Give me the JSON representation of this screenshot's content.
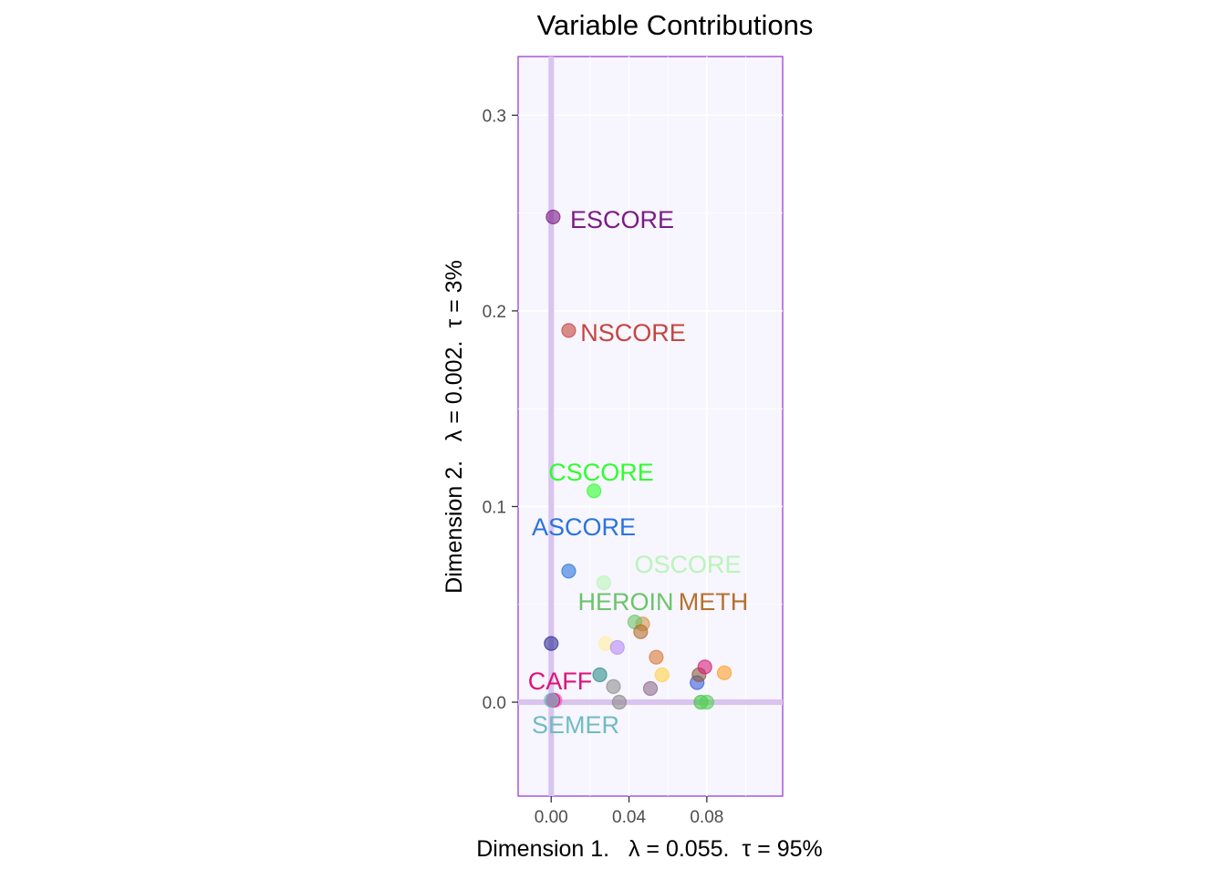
{
  "chart_data": {
    "type": "scatter",
    "title": "Variable Contributions",
    "xlabel": "Dimension 1.   λ = 0.055.  τ = 95%",
    "ylabel": "Dimension 2.   λ = 0.002.  τ = 3%",
    "xlim": [
      -0.017,
      0.119
    ],
    "ylim": [
      -0.048,
      0.33
    ],
    "x_ticks": [
      {
        "value": 0.0,
        "label": "0.00"
      },
      {
        "value": 0.04,
        "label": "0.04"
      },
      {
        "value": 0.08,
        "label": "0.08"
      }
    ],
    "y_ticks": [
      {
        "value": 0.0,
        "label": "0.0"
      },
      {
        "value": 0.1,
        "label": "0.1"
      },
      {
        "value": 0.2,
        "label": "0.2"
      },
      {
        "value": 0.3,
        "label": "0.3"
      }
    ],
    "grid": true,
    "background": "#f7f5fd",
    "panel_border": "#9b3fd6",
    "reference_line_color": "#d9c3ef",
    "labeled_points": [
      {
        "label": "ESCORE",
        "x": 0.001,
        "y": 0.248,
        "color": "#7b1b86"
      },
      {
        "label": "NSCORE",
        "x": 0.009,
        "y": 0.19,
        "color": "#c4463e"
      },
      {
        "label": "CSCORE",
        "x": 0.022,
        "y": 0.108,
        "color": "#2dff2d"
      },
      {
        "label": "ASCORE",
        "x": 0.009,
        "y": 0.067,
        "color": "#2a74de"
      },
      {
        "label": "OSCORE",
        "x": 0.027,
        "y": 0.061,
        "color": "#b9f5b9"
      },
      {
        "label": "HEROIN",
        "x": 0.043,
        "y": 0.041,
        "color": "#6bc46b"
      },
      {
        "label": "METH",
        "x": 0.046,
        "y": 0.036,
        "color": "#b5702f"
      },
      {
        "label": "CAFF",
        "x": 0.001,
        "y": 0.001,
        "color": "#e0117a"
      },
      {
        "label": "SEMER",
        "x": 0.0,
        "y": 0.001,
        "color": "#6fbcc4"
      }
    ],
    "unlabeled_points": [
      {
        "x": 0.0,
        "y": 0.03,
        "color": "#2f2f9a"
      },
      {
        "x": 0.002,
        "y": 0.001,
        "color": "#f06ec0"
      },
      {
        "x": 0.025,
        "y": 0.014,
        "color": "#2e9090"
      },
      {
        "x": 0.028,
        "y": 0.03,
        "color": "#fff0a0"
      },
      {
        "x": 0.034,
        "y": 0.028,
        "color": "#b58cf6"
      },
      {
        "x": 0.032,
        "y": 0.008,
        "color": "#909090"
      },
      {
        "x": 0.035,
        "y": 0.0,
        "color": "#8a8a8a"
      },
      {
        "x": 0.047,
        "y": 0.04,
        "color": "#d8944a"
      },
      {
        "x": 0.051,
        "y": 0.007,
        "color": "#8e6e8e"
      },
      {
        "x": 0.054,
        "y": 0.023,
        "color": "#d87a38"
      },
      {
        "x": 0.057,
        "y": 0.014,
        "color": "#ffd24a"
      },
      {
        "x": 0.075,
        "y": 0.01,
        "color": "#3a5ddc"
      },
      {
        "x": 0.076,
        "y": 0.014,
        "color": "#8b5e3c"
      },
      {
        "x": 0.077,
        "y": 0.0,
        "color": "#3cc83c"
      },
      {
        "x": 0.079,
        "y": 0.018,
        "color": "#d61f7a"
      },
      {
        "x": 0.08,
        "y": 0.0,
        "color": "#58d058"
      },
      {
        "x": 0.089,
        "y": 0.015,
        "color": "#ff9e2a"
      }
    ]
  }
}
